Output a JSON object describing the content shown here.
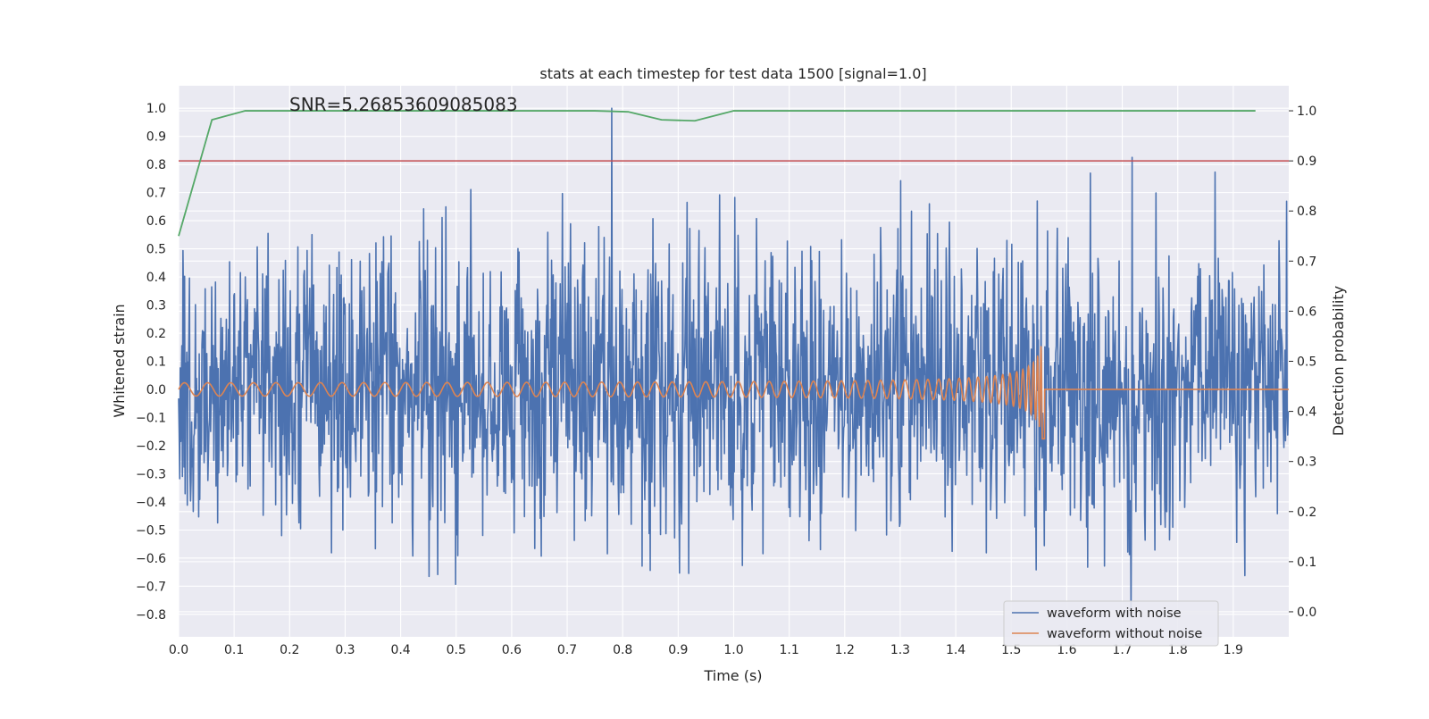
{
  "chart_data": {
    "type": "line",
    "title": "stats at each timestep for test data 1500 [signal=1.0]",
    "xlabel": "Time (s)",
    "ylabel_left": "Whitened strain",
    "ylabel_right": "Detection probability",
    "annotation": "SNR=5.26853609085083",
    "xlim": [
      0.0,
      2.0
    ],
    "ylim_left": [
      -0.88,
      1.08
    ],
    "ylim_right": [
      -0.05,
      1.05
    ],
    "x_ticks": [
      "0.0",
      "0.1",
      "0.2",
      "0.3",
      "0.4",
      "0.5",
      "0.6",
      "0.7",
      "0.8",
      "0.9",
      "1.0",
      "1.1",
      "1.2",
      "1.3",
      "1.4",
      "1.5",
      "1.6",
      "1.7",
      "1.8",
      "1.9"
    ],
    "y_left_ticks": [
      "1.0",
      "0.9",
      "0.8",
      "0.7",
      "0.6",
      "0.5",
      "0.4",
      "0.3",
      "0.2",
      "0.1",
      "0.0",
      "−0.1",
      "−0.2",
      "−0.3",
      "−0.4",
      "−0.5",
      "−0.6",
      "−0.7",
      "−0.8"
    ],
    "y_right_ticks": [
      "1.0",
      "0.9",
      "0.8",
      "0.7",
      "0.6",
      "0.5",
      "0.4",
      "0.3",
      "0.2",
      "0.1",
      "0.0"
    ],
    "legend": [
      {
        "label": "waveform with noise",
        "color": "#4c72b0"
      },
      {
        "label": "waveform without noise",
        "color": "#dd8452"
      }
    ],
    "legend_position": "lower-right",
    "series": [
      {
        "name": "waveform with noise",
        "axis": "left",
        "color": "#4c72b0",
        "description": "white noise, std ~0.25, peaks ~0.78 / ~-0.78, spike to 1.0 at t=0.78",
        "noise_std": 0.25,
        "spike": {
          "x": 0.78,
          "y": 1.0
        }
      },
      {
        "name": "waveform without noise",
        "axis": "left",
        "color": "#dd8452",
        "description": "chirp; amplitude grows from ~0.02 to ~0.25 at merger t=1.56, zero afterwards",
        "merger_time": 1.56,
        "peak_amplitude": 0.25
      },
      {
        "name": "detection probability",
        "axis": "right",
        "color": "#55a868",
        "x": [
          0.0,
          0.06,
          0.12,
          0.75,
          0.81,
          0.87,
          0.93,
          1.0,
          1.94
        ],
        "y": [
          0.75,
          0.982,
          1.0,
          1.0,
          0.998,
          0.982,
          0.98,
          1.0,
          1.0
        ]
      },
      {
        "name": "threshold",
        "axis": "right",
        "color": "#c44e52",
        "y": 0.9
      }
    ]
  }
}
